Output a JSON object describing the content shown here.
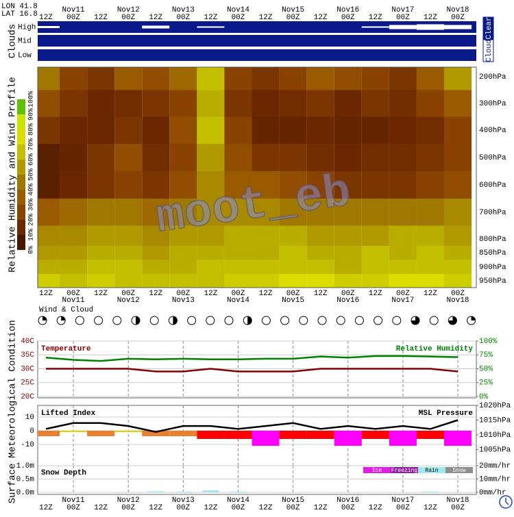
{
  "header": {
    "lon": "LON 41.8",
    "lat": "LAT 16.8"
  },
  "watermark": "moot_eb",
  "side_titles": {
    "clouds": "Clouds",
    "profile": "Relative Humidity and Wind Profile",
    "met": "Meteorological Condition",
    "surface": "Surface"
  },
  "time_axis": {
    "hours": [
      "12Z",
      "00Z",
      "12Z",
      "00Z",
      "12Z",
      "00Z",
      "12Z",
      "00Z",
      "12Z",
      "00Z",
      "12Z",
      "00Z",
      "12Z",
      "00Z",
      "12Z",
      "00Z"
    ],
    "days": [
      "Nov11",
      "Nov12",
      "Nov13",
      "Nov14",
      "Nov15",
      "Nov16",
      "Nov17",
      "Nov18"
    ]
  },
  "chart_data": [
    {
      "type": "cloud",
      "rows": [
        "High",
        "Mid",
        "Low"
      ],
      "color": "#0a1a8a",
      "cloud_color": "#ffffff",
      "scale_labels": [
        "Cloud",
        "Clear"
      ],
      "values": [
        [
          30,
          0,
          0,
          0,
          40,
          0,
          20,
          0,
          0,
          0,
          0,
          0,
          20,
          60,
          80,
          60
        ],
        [
          0,
          0,
          0,
          0,
          0,
          0,
          0,
          0,
          0,
          0,
          0,
          0,
          0,
          0,
          0,
          0
        ],
        [
          0,
          0,
          0,
          0,
          0,
          0,
          0,
          0,
          0,
          0,
          0,
          0,
          0,
          0,
          0,
          0
        ]
      ]
    },
    {
      "type": "heatmap",
      "levels": [
        "200hPa",
        "300hPa",
        "400hPa",
        "500hPa",
        "600hPa",
        "700hPa",
        "800hPa",
        "850hPa",
        "900hPa",
        "950hPa"
      ],
      "values": [
        [
          40,
          20,
          15,
          30,
          25,
          35,
          60,
          20,
          15,
          20,
          30,
          25,
          20,
          15,
          30,
          50
        ],
        [
          25,
          15,
          10,
          12,
          15,
          20,
          55,
          15,
          10,
          12,
          15,
          10,
          15,
          12,
          20,
          30
        ],
        [
          15,
          10,
          10,
          15,
          10,
          25,
          60,
          20,
          8,
          8,
          10,
          8,
          8,
          10,
          12,
          20
        ],
        [
          5,
          8,
          15,
          25,
          12,
          20,
          50,
          25,
          15,
          15,
          12,
          10,
          12,
          12,
          15,
          20
        ],
        [
          5,
          10,
          15,
          20,
          15,
          25,
          45,
          30,
          30,
          25,
          20,
          15,
          15,
          15,
          20,
          25
        ],
        [
          30,
          35,
          40,
          40,
          35,
          40,
          45,
          45,
          45,
          40,
          40,
          40,
          40,
          40,
          40,
          45
        ],
        [
          45,
          45,
          50,
          50,
          45,
          50,
          50,
          55,
          55,
          55,
          50,
          50,
          50,
          55,
          55,
          50
        ],
        [
          50,
          50,
          55,
          55,
          50,
          55,
          55,
          55,
          55,
          60,
          55,
          55,
          60,
          55,
          60,
          55
        ],
        [
          55,
          55,
          60,
          60,
          55,
          55,
          60,
          60,
          60,
          60,
          60,
          55,
          60,
          60,
          60,
          60
        ],
        [
          65,
          60,
          65,
          60,
          60,
          60,
          60,
          65,
          65,
          70,
          70,
          65,
          65,
          70,
          70,
          65
        ]
      ],
      "colorscale": [
        "#4a1800",
        "#6b2800",
        "#8a4200",
        "#9a5a00",
        "#a07800",
        "#b09a00",
        "#c2c000",
        "#dcdc00",
        "#c8e400",
        "#60c000",
        "#008a00"
      ],
      "cticks": [
        {
          "value": 0,
          "label": "0%"
        },
        {
          "value": 10,
          "label": "10%"
        },
        {
          "value": 20,
          "label": "20%"
        },
        {
          "value": 30,
          "label": "30%"
        },
        {
          "value": 40,
          "label": "40%"
        },
        {
          "value": 50,
          "label": "50%"
        },
        {
          "value": 60,
          "label": "60%"
        },
        {
          "value": 70,
          "label": "70%"
        },
        {
          "value": 80,
          "label": "80%"
        },
        {
          "value": 90,
          "label": "90%"
        },
        {
          "value": 100,
          "label": "100%"
        }
      ]
    },
    {
      "type": "station",
      "title": "Wind & Cloud",
      "values": [
        1,
        1,
        0,
        0,
        0,
        2,
        0,
        2,
        0,
        0,
        0,
        2,
        0,
        0,
        0,
        0,
        0,
        0,
        0,
        0,
        3,
        0,
        3,
        1
      ]
    },
    {
      "type": "line",
      "series": [
        {
          "name": "Temperature",
          "color": "#800000",
          "values": [
            30,
            30,
            30,
            30,
            29,
            29,
            30,
            29,
            29,
            29,
            30,
            30,
            30,
            30,
            30,
            29
          ]
        },
        {
          "name": "Relative Humidity",
          "color": "#008000",
          "axis": "y2",
          "values": [
            70,
            66,
            64,
            68,
            67,
            68,
            67,
            67,
            68,
            68,
            72,
            70,
            73,
            73,
            72,
            71
          ]
        }
      ],
      "ylim": [
        20,
        40
      ],
      "yticks": [
        {
          "value": 20,
          "label": "20C"
        },
        {
          "value": 25,
          "label": "25C"
        },
        {
          "value": 30,
          "label": "30C"
        },
        {
          "value": 35,
          "label": "35C"
        },
        {
          "value": 40,
          "label": "40C"
        }
      ],
      "y2lim": [
        0,
        100
      ],
      "y2ticks": [
        {
          "value": 0,
          "label": "0%"
        },
        {
          "value": 25,
          "label": "25%"
        },
        {
          "value": 50,
          "label": "50%"
        },
        {
          "value": 75,
          "label": "75%"
        },
        {
          "value": 100,
          "label": "100%"
        }
      ],
      "grid": true
    },
    {
      "type": "line",
      "series": [
        {
          "name": "Lifted Index",
          "type": "bar",
          "values": [
            -4,
            -1,
            -4,
            -1,
            -4,
            -4,
            -6,
            -6,
            -11,
            -6,
            -6,
            -11,
            -6,
            -11,
            -6,
            -11
          ],
          "colors": [
            "#e88030",
            "#e8d000",
            "#e88030",
            "#e8d000",
            "#e88030",
            "#e88030",
            "#ff0000",
            "#ff0000",
            "#ff00ff",
            "#ff0000",
            "#ff0000",
            "#ff00ff",
            "#ff0000",
            "#ff00ff",
            "#ff0000",
            "#ff00ff"
          ]
        },
        {
          "name": "MSL Pressure",
          "color": "#000000",
          "axis": "y2",
          "values": [
            1012,
            1014,
            1014,
            1013,
            1011,
            1013,
            1013,
            1012,
            1013,
            1014,
            1012,
            1013,
            1012,
            1013,
            1012,
            1015
          ]
        }
      ],
      "ylim": [
        -24.5,
        18.5
      ],
      "yticks": [
        -10,
        0,
        10
      ],
      "y2lim": [
        1000,
        1020
      ],
      "y2ticks": [
        {
          "value": 1005,
          "label": "1005hPa"
        },
        {
          "value": 1010,
          "label": "1010hPa"
        },
        {
          "value": 1015,
          "label": "1015hPa"
        },
        {
          "value": 1020,
          "label": "1020hPa"
        }
      ],
      "grid": true
    },
    {
      "type": "bar",
      "title": "Snow Depth",
      "series": [
        {
          "name": "Ice",
          "color": "#e020e0",
          "axis": "y2",
          "values": [
            0,
            0,
            0,
            0,
            0,
            0,
            0,
            0,
            0,
            0,
            0,
            0,
            0,
            0,
            0,
            0
          ]
        },
        {
          "name": "Freezing",
          "color": "#9020a0",
          "axis": "y2",
          "values": [
            0,
            0,
            0,
            0,
            0,
            0,
            0,
            0,
            0,
            0,
            0,
            0,
            0,
            0,
            0,
            0
          ]
        },
        {
          "name": "Rain",
          "color": "#a0e8f0",
          "axis": "y2",
          "values": [
            0,
            0,
            0,
            0,
            0.8,
            0.5,
            1.5,
            0.5,
            0,
            0,
            0,
            0,
            0,
            0,
            0.5,
            0
          ]
        },
        {
          "name": "Snow",
          "color": "#909090",
          "axis": "y2",
          "values": [
            0,
            0,
            0,
            0,
            0,
            0,
            0,
            0,
            0,
            0,
            0,
            0,
            0,
            0,
            0,
            0
          ]
        }
      ],
      "ylim": [
        0,
        1
      ],
      "yticks": [
        {
          "value": 0,
          "label": "0.0m"
        },
        {
          "value": 0.5,
          "label": "0.5m"
        },
        {
          "value": 1,
          "label": "1.0m"
        }
      ],
      "y2lim": [
        0,
        20
      ],
      "y2ticks": [
        {
          "value": 0,
          "label": "0mm/hr"
        },
        {
          "value": 10,
          "label": "10mm/hr"
        },
        {
          "value": 20,
          "label": "20mm/hr"
        }
      ],
      "grid": true
    }
  ]
}
